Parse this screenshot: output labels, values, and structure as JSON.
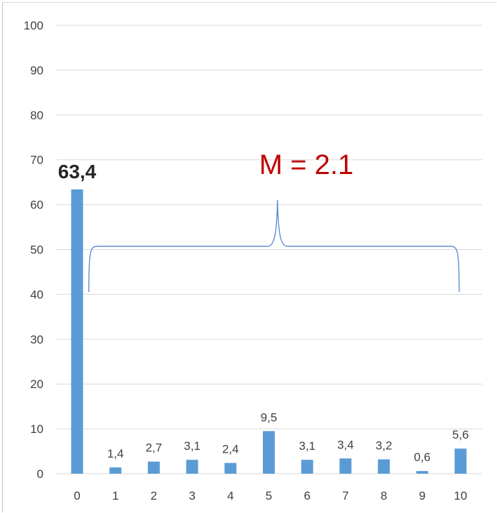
{
  "chart_data": {
    "type": "bar",
    "categories": [
      "0",
      "1",
      "2",
      "3",
      "4",
      "5",
      "6",
      "7",
      "8",
      "9",
      "10"
    ],
    "values": [
      63.4,
      1.4,
      2.7,
      3.1,
      2.4,
      9.5,
      3.1,
      3.4,
      3.2,
      0.6,
      5.6
    ],
    "data_labels": [
      "63,4",
      "1,4",
      "2,7",
      "3,1",
      "2,4",
      "9,5",
      "3,1",
      "3,4",
      "3,2",
      "0,6",
      "5,6"
    ],
    "yticks": [
      "0",
      "10",
      "20",
      "30",
      "40",
      "50",
      "60",
      "70",
      "80",
      "90",
      "100"
    ],
    "ylim": [
      0,
      100
    ],
    "title": "",
    "xlabel": "",
    "ylabel": "",
    "grid": true,
    "bar_color": "#5b9bd5",
    "annotation": {
      "text": "M = 2.1",
      "color": "#c00000",
      "brace_color": "#5b8fd0",
      "brace_from_category": "1",
      "brace_to_category": "10"
    }
  }
}
